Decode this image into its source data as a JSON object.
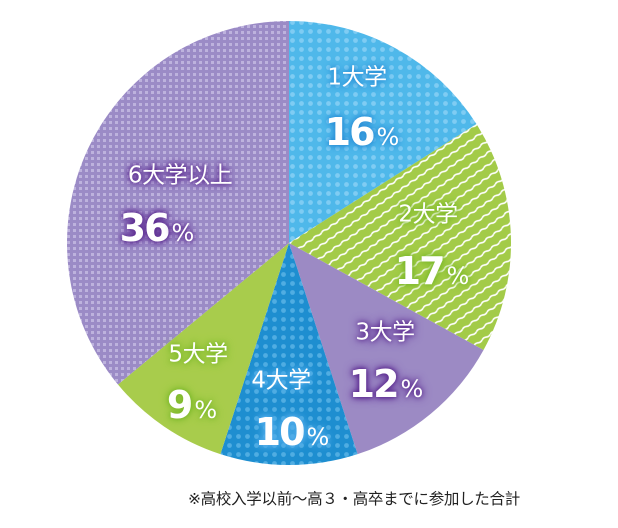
{
  "chart_data": {
    "type": "pie",
    "title": "",
    "start_angle": "12 o'clock",
    "direction": "clockwise",
    "categories": [
      "1大学",
      "2大学",
      "3大学",
      "4大学",
      "5大学",
      "6大学以上"
    ],
    "values": [
      16,
      17,
      12,
      10,
      9,
      36
    ],
    "unit": "%",
    "slices": [
      {
        "label": "1大学",
        "value": 16,
        "display": "16",
        "color": "#4FB8EA",
        "pattern": "dots"
      },
      {
        "label": "2大学",
        "value": 17,
        "display": "17",
        "color": "#A3CB48",
        "pattern": "wavy-stripes"
      },
      {
        "label": "3大学",
        "value": 12,
        "display": "12",
        "color": "#9C8AC4",
        "pattern": "solid"
      },
      {
        "label": "4大学",
        "value": 10,
        "display": "10",
        "color": "#1E8ED0",
        "pattern": "dots"
      },
      {
        "label": "5大学",
        "value": 9,
        "display": "9",
        "color": "#A8CC4C",
        "pattern": "solid"
      },
      {
        "label": "6大学以上",
        "value": 36,
        "display": "36",
        "color": "#9B8BC6",
        "pattern": "grid"
      }
    ],
    "legend": "none (labels inside slices)",
    "annotations": [
      "※高校入学以前〜高３・高卒までに参加した合計"
    ]
  },
  "labels": {
    "s1": {
      "name": "1大学",
      "pct": "16",
      "unit": "%"
    },
    "s2": {
      "name": "2大学",
      "pct": "17",
      "unit": "%"
    },
    "s3": {
      "name": "3大学",
      "pct": "12",
      "unit": "%"
    },
    "s4": {
      "name": "4大学",
      "pct": "10",
      "unit": "%"
    },
    "s5": {
      "name": "5大学",
      "pct": "9",
      "unit": "%"
    },
    "s6": {
      "name": "6大学以上",
      "pct": "36",
      "unit": "%"
    }
  },
  "footnote": "※高校入学以前〜高３・高卒までに参加した合計"
}
